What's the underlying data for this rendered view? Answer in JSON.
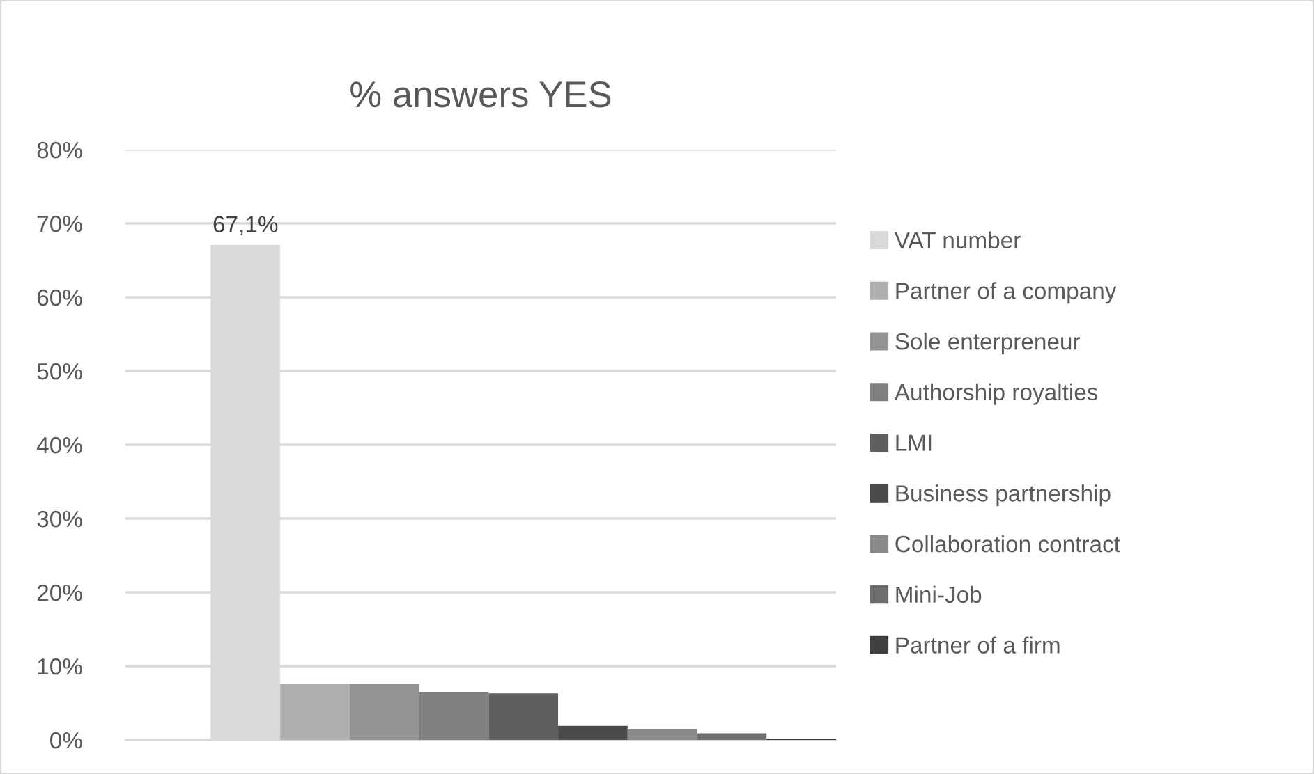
{
  "chart_data": {
    "type": "bar",
    "title": "% answers YES",
    "categories": [
      null
    ],
    "series": [
      {
        "name": "VAT number",
        "color": "#d9d9d9",
        "values": [
          67.1
        ],
        "value_labels": [
          "67,1%"
        ]
      },
      {
        "name": "Partner of a company",
        "color": "#afafaf",
        "values": [
          7.6
        ]
      },
      {
        "name": "Sole enterpreneur",
        "color": "#949494",
        "values": [
          7.6
        ]
      },
      {
        "name": "Authorship royalties",
        "color": "#7f7f7f",
        "values": [
          6.5
        ]
      },
      {
        "name": "LMI",
        "color": "#5f5f5f",
        "values": [
          6.3
        ]
      },
      {
        "name": "Business partnership",
        "color": "#4a4a4a",
        "values": [
          1.9
        ]
      },
      {
        "name": "Collaboration contract",
        "color": "#8a8a8a",
        "values": [
          1.5
        ]
      },
      {
        "name": "Mini-Job",
        "color": "#6e6e6e",
        "values": [
          0.9
        ]
      },
      {
        "name": "Partner of a firm",
        "color": "#3f3f3f",
        "values": [
          0.2
        ]
      }
    ],
    "ylim": [
      0,
      80
    ],
    "yticks": [
      {
        "value": 0,
        "label": "0%"
      },
      {
        "value": 10,
        "label": "10%"
      },
      {
        "value": 20,
        "label": "20%"
      },
      {
        "value": 30,
        "label": "30%"
      },
      {
        "value": 40,
        "label": "40%"
      },
      {
        "value": 50,
        "label": "50%"
      },
      {
        "value": 60,
        "label": "60%"
      },
      {
        "value": 70,
        "label": "70%"
      },
      {
        "value": 80,
        "label": "80%"
      }
    ],
    "grid": "y",
    "legend": "right"
  }
}
